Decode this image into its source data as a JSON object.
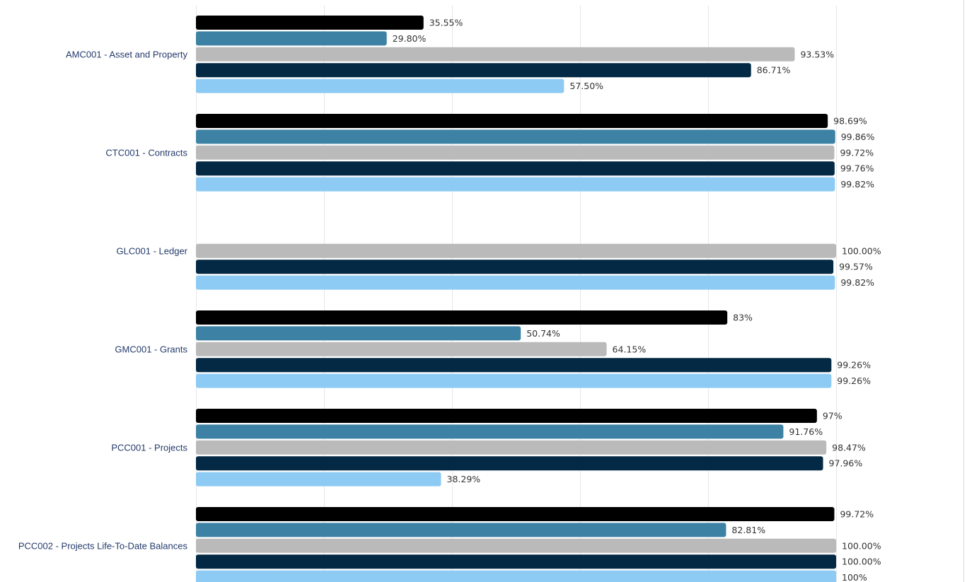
{
  "chart_data": {
    "type": "bar",
    "orientation": "horizontal",
    "categories": [
      "AMC001 - Asset and Property",
      "CTC001 - Contracts",
      "GLC001 - Ledger",
      "GMC001 - Grants",
      "PCC001 - Projects",
      "PCC002 - Projects Life-To-Date Balances"
    ],
    "series": [
      {
        "color": "#000000",
        "values": [
          35.55,
          98.69,
          null,
          83,
          97,
          99.72
        ],
        "labels": [
          "35.55%",
          "98.69%",
          "",
          "83%",
          "97%",
          "99.72%"
        ]
      },
      {
        "color": "#3d82a4",
        "values": [
          29.8,
          99.86,
          null,
          50.74,
          91.76,
          82.81
        ],
        "labels": [
          "29.80%",
          "99.86%",
          "",
          "50.74%",
          "91.76%",
          "82.81%"
        ]
      },
      {
        "color": "#bababa",
        "values": [
          93.53,
          99.72,
          100.0,
          64.15,
          98.47,
          100.0
        ],
        "labels": [
          "93.53%",
          "99.72%",
          "100.00%",
          "64.15%",
          "98.47%",
          "100.00%"
        ]
      },
      {
        "color": "#032944",
        "values": [
          86.71,
          99.76,
          99.57,
          99.26,
          97.96,
          100.0
        ],
        "labels": [
          "86.71%",
          "99.76%",
          "99.57%",
          "99.26%",
          "97.96%",
          "100.00%"
        ]
      },
      {
        "color": "#8ecbf4",
        "values": [
          57.5,
          99.82,
          99.82,
          99.26,
          38.29,
          100
        ],
        "labels": [
          "57.50%",
          "99.82%",
          "99.82%",
          "99.26%",
          "38.29%",
          "100%"
        ]
      }
    ],
    "xlim": [
      0,
      100
    ],
    "grid": true,
    "legend": "none",
    "title": "",
    "xlabel": "",
    "ylabel": ""
  }
}
